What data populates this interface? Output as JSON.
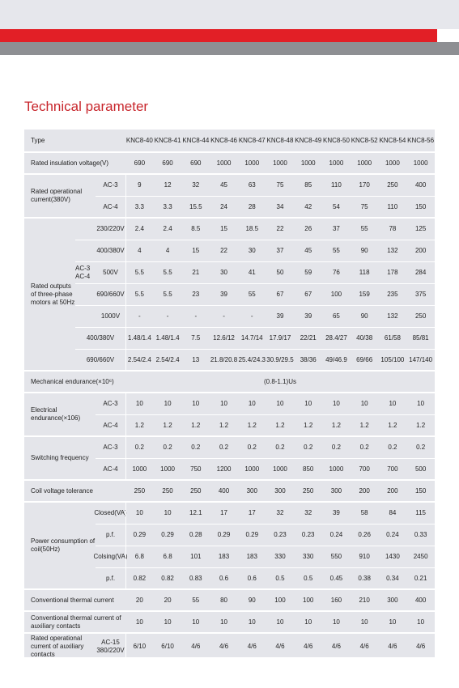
{
  "header": {
    "title": "Technical parameter"
  },
  "table": {
    "header": {
      "label": "Type",
      "columns": [
        "KNC8-40",
        "KNC8-41",
        "KNC8-44",
        "KNC8-46",
        "KNC8-47",
        "KNC8-48",
        "KNC8-49",
        "KNC8-50",
        "KNC8-52",
        "KNC8-54",
        "KNC8-56"
      ]
    },
    "groups": [
      {
        "label": "Rated insulation voltage(V)",
        "rows": [
          {
            "values": [
              "690",
              "690",
              "690",
              "1000",
              "1000",
              "1000",
              "1000",
              "1000",
              "1000",
              "1000",
              "1000"
            ]
          }
        ]
      },
      {
        "label": "Rated operational current(380V)",
        "rows": [
          {
            "sub": "AC-3",
            "values": [
              "9",
              "12",
              "32",
              "45",
              "63",
              "75",
              "85",
              "110",
              "170",
              "250",
              "400"
            ]
          },
          {
            "sub": "AC-4",
            "values": [
              "3.3",
              "3.3",
              "15.5",
              "24",
              "28",
              "34",
              "42",
              "54",
              "75",
              "110",
              "150"
            ]
          }
        ]
      },
      {
        "label": "Rated outputs of three-phase motors at 50Hz",
        "mid": {
          "label": "AC-3 AC-4",
          "rows": [
            {
              "sub": "230/220V",
              "values": [
                "2.4",
                "2.4",
                "8.5",
                "15",
                "18.5",
                "22",
                "26",
                "37",
                "55",
                "78",
                "125"
              ]
            },
            {
              "sub": "400/380V",
              "values": [
                "4",
                "4",
                "15",
                "22",
                "30",
                "37",
                "45",
                "55",
                "90",
                "132",
                "200"
              ]
            },
            {
              "sub": "500V",
              "values": [
                "5.5",
                "5.5",
                "21",
                "30",
                "41",
                "50",
                "59",
                "76",
                "118",
                "178",
                "284"
              ]
            },
            {
              "sub": "690/660V",
              "values": [
                "5.5",
                "5.5",
                "23",
                "39",
                "55",
                "67",
                "67",
                "100",
                "159",
                "235",
                "375"
              ]
            },
            {
              "sub": "1000V",
              "values": [
                "-",
                "-",
                "-",
                "-",
                "-",
                "39",
                "39",
                "65",
                "90",
                "132",
                "250"
              ]
            }
          ]
        },
        "rows": [
          {
            "sub": "400/380V",
            "values": [
              "1.48/1.4",
              "1.48/1.4",
              "7.5",
              "12.6/12",
              "14.7/14",
              "17.9/17",
              "22/21",
              "28.4/27",
              "40/38",
              "61/58",
              "85/81"
            ]
          },
          {
            "sub": "690/660V",
            "values": [
              "2.54/2.4",
              "2.54/2.4",
              "13",
              "21.8/20.8",
              "25.4/24.3",
              "30.9/29.5",
              "38/36",
              "49/46.9",
              "69/66",
              "105/100",
              "147/140"
            ]
          }
        ]
      },
      {
        "label": "Mechanical endurance(×10⁶)",
        "rows": [
          {
            "value": "(0.8-1.1)Us"
          }
        ]
      },
      {
        "label": "Electrical endurance(×106)",
        "rows": [
          {
            "sub": "AC-3",
            "values": [
              "10",
              "10",
              "10",
              "10",
              "10",
              "10",
              "10",
              "10",
              "10",
              "10",
              "10"
            ]
          },
          {
            "sub": "AC-4",
            "values": [
              "1.2",
              "1.2",
              "1.2",
              "1.2",
              "1.2",
              "1.2",
              "1.2",
              "1.2",
              "1.2",
              "1.2",
              "1.2"
            ]
          }
        ]
      },
      {
        "label": "Switching frequency",
        "rows": [
          {
            "sub": "AC-3",
            "values": [
              "0.2",
              "0.2",
              "0.2",
              "0.2",
              "0.2",
              "0.2",
              "0.2",
              "0.2",
              "0.2",
              "0.2",
              "0.2"
            ]
          },
          {
            "sub": "AC-4",
            "values": [
              "1000",
              "1000",
              "750",
              "1200",
              "1000",
              "1000",
              "850",
              "1000",
              "700",
              "700",
              "500"
            ]
          }
        ]
      },
      {
        "label": "Coil voltage tolerance",
        "rows": [
          {
            "values": [
              "250",
              "250",
              "250",
              "400",
              "300",
              "300",
              "250",
              "300",
              "200",
              "200",
              "150"
            ]
          }
        ]
      },
      {
        "label": "Power consumption of coil(50Hz)",
        "rows": [
          {
            "sub": "Closed(VA)",
            "values": [
              "10",
              "10",
              "12.1",
              "17",
              "17",
              "32",
              "32",
              "39",
              "58",
              "84",
              "115"
            ]
          },
          {
            "sub": "p.f.",
            "values": [
              "0.29",
              "0.29",
              "0.28",
              "0.29",
              "0.29",
              "0.23",
              "0.23",
              "0.24",
              "0.26",
              "0.24",
              "0.33"
            ]
          },
          {
            "sub": "Colsing(VA)",
            "values": [
              "6.8",
              "6.8",
              "101",
              "183",
              "183",
              "330",
              "330",
              "550",
              "910",
              "1430",
              "2450"
            ]
          },
          {
            "sub": "p.f.",
            "values": [
              "0.82",
              "0.82",
              "0.83",
              "0.6",
              "0.6",
              "0.5",
              "0.5",
              "0.45",
              "0.38",
              "0.34",
              "0.21"
            ]
          }
        ]
      },
      {
        "label": "Conventional thermal current",
        "rows": [
          {
            "values": [
              "20",
              "20",
              "55",
              "80",
              "90",
              "100",
              "100",
              "160",
              "210",
              "300",
              "400"
            ]
          }
        ]
      },
      {
        "label": "Conventional thermal current of auxiliary contacts",
        "rows": [
          {
            "values": [
              "10",
              "10",
              "10",
              "10",
              "10",
              "10",
              "10",
              "10",
              "10",
              "10",
              "10"
            ]
          }
        ]
      },
      {
        "label": "Rated operational current of auxiliary contacts",
        "rows": [
          {
            "sub": "AC-15 380/220V",
            "values": [
              "6/10",
              "6/10",
              "4/6",
              "4/6",
              "4/6",
              "4/6",
              "4/6",
              "4/6",
              "4/6",
              "4/6",
              "4/6"
            ]
          }
        ]
      }
    ]
  }
}
